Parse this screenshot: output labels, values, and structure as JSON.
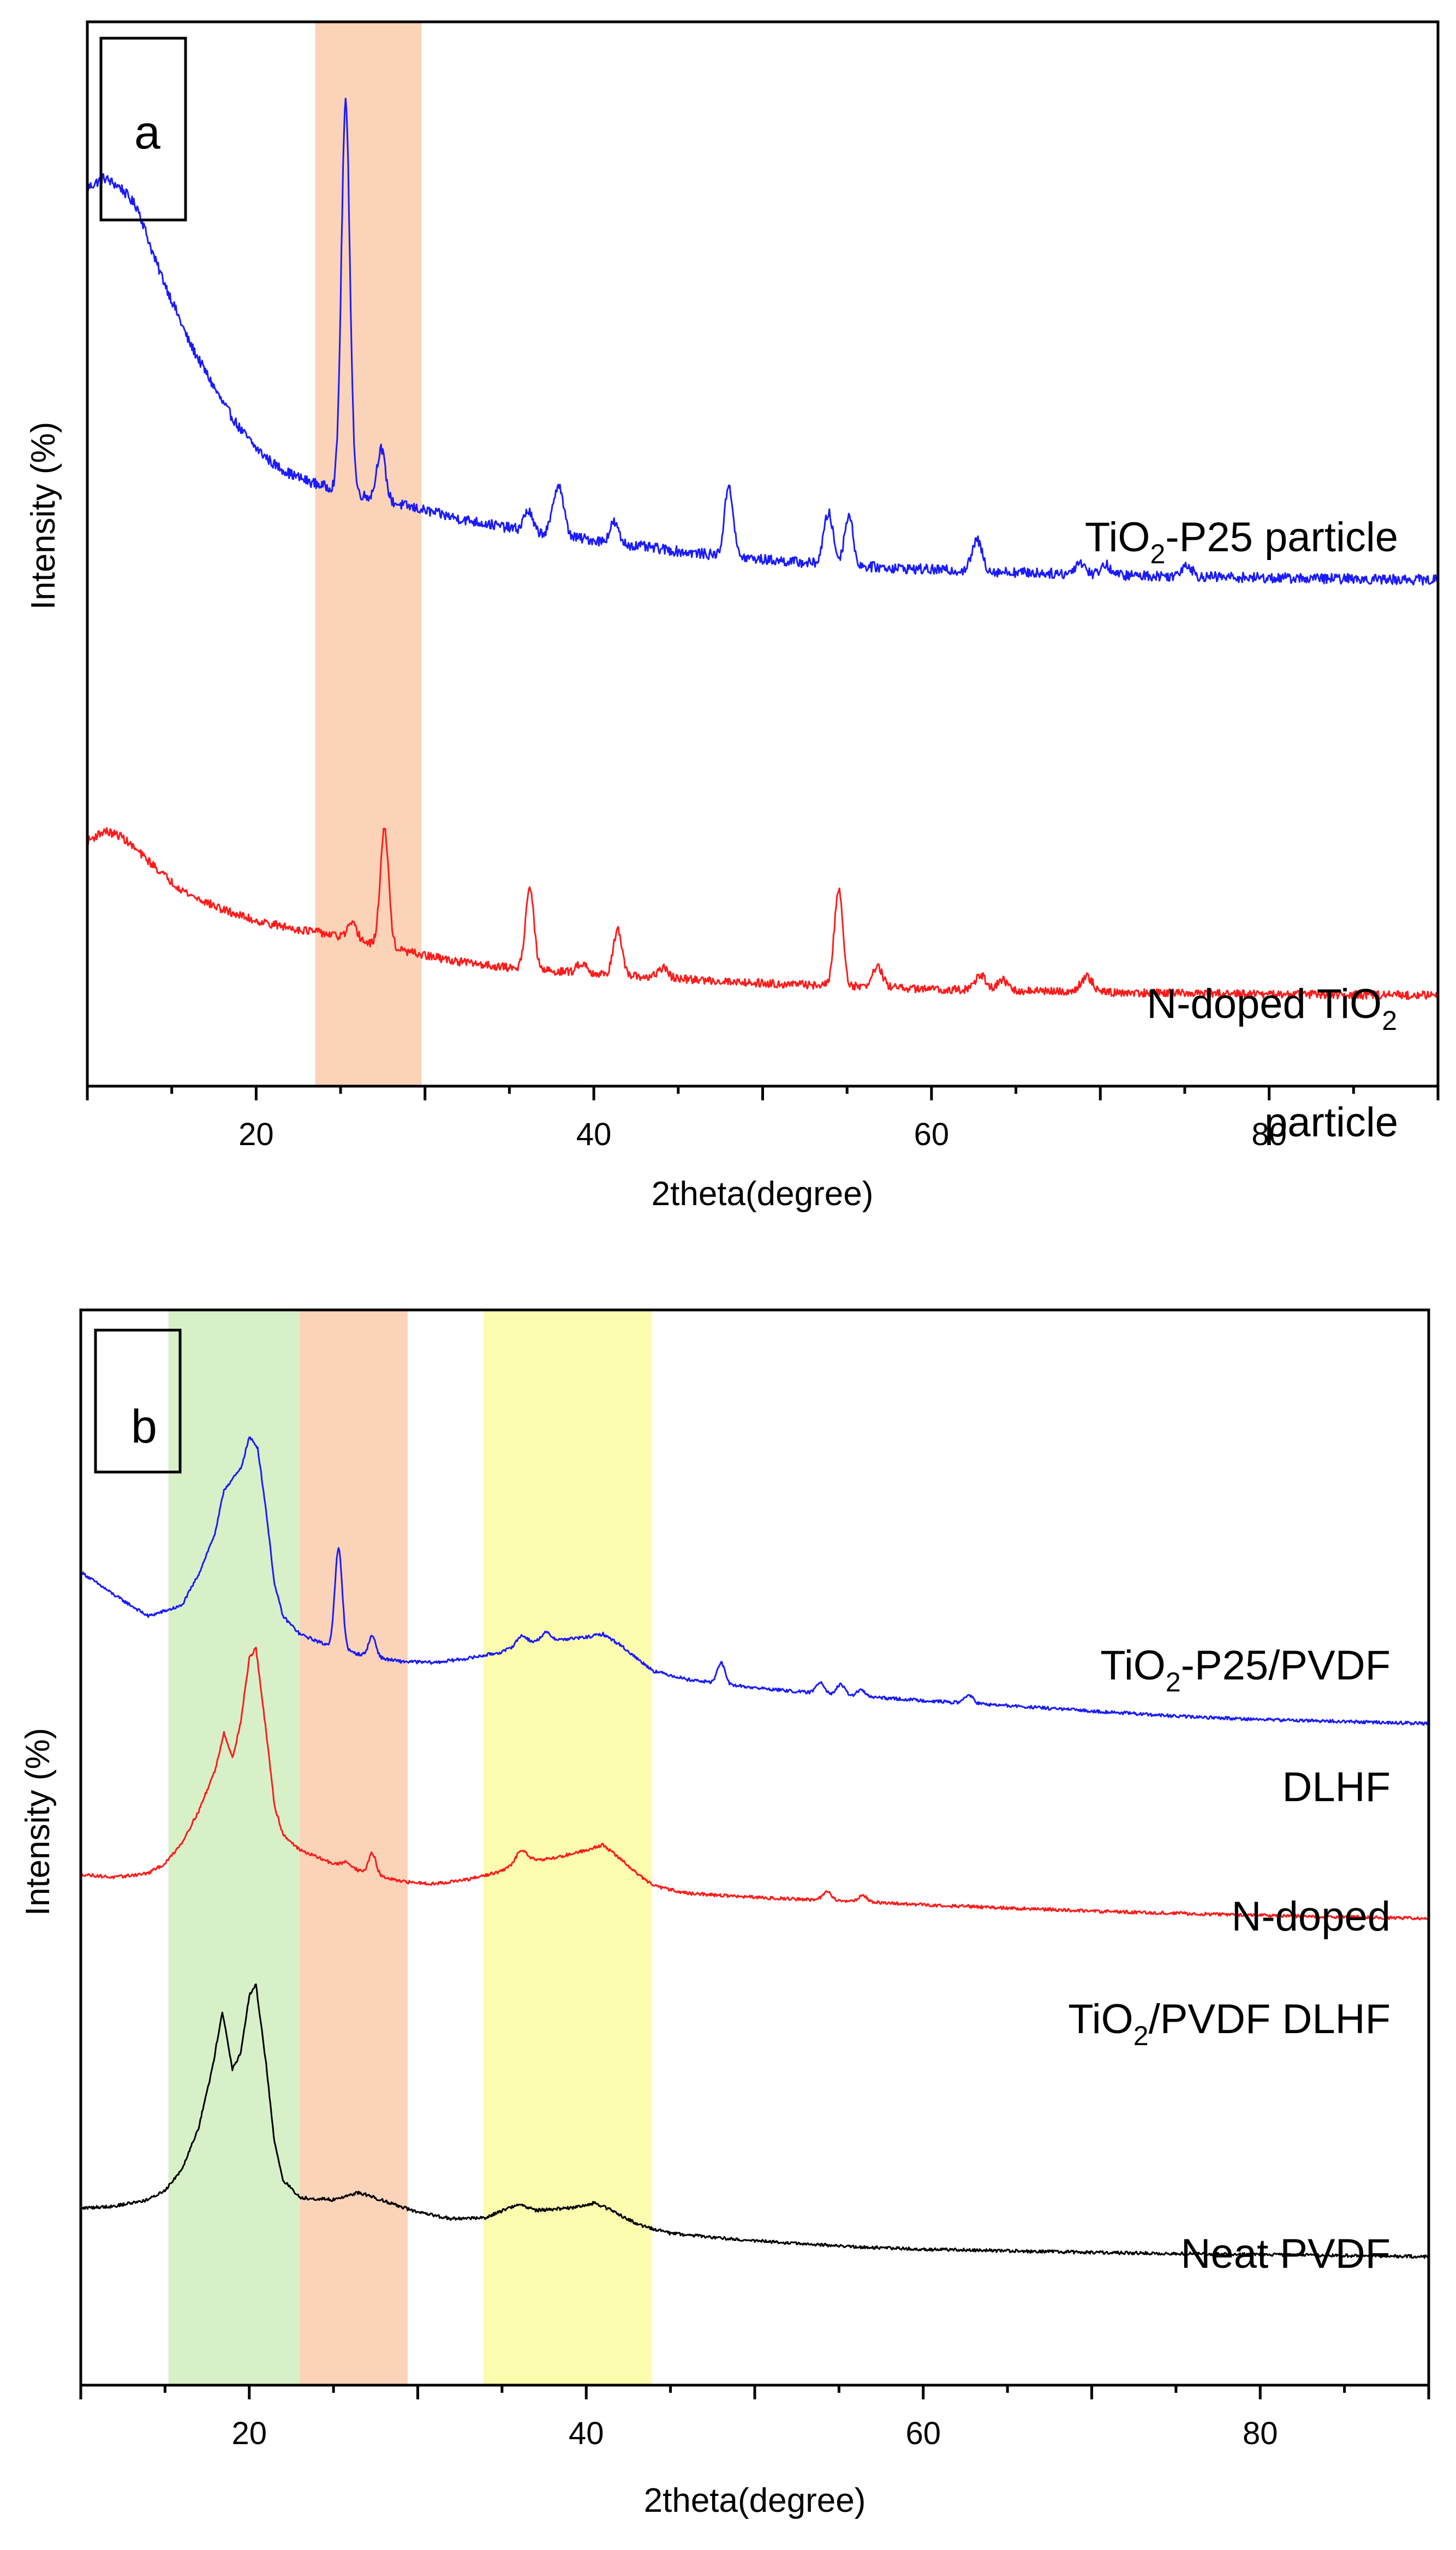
{
  "figure_title": "",
  "chart_data": [
    {
      "type": "line",
      "panel_label": "a",
      "title": "",
      "xlabel": "2theta(degree)",
      "ylabel": "Intensity (%)",
      "xlim": [
        10,
        90
      ],
      "ylim": [
        0,
        100
      ],
      "x_ticks": [
        20,
        40,
        60,
        80
      ],
      "x_tick_labels": [
        "20",
        "40",
        "60",
        "80"
      ],
      "grid": false,
      "legend": "none",
      "highlight_bands": [
        {
          "from": 23.5,
          "to": 29.8,
          "color": "#fbd3b8"
        }
      ],
      "series": [
        {
          "name": "TiO2-P25 particle",
          "color": "#1a1aff",
          "label_lines": [
            {
              "runs": [
                {
                  "text": "TiO"
                },
                {
                  "text": "2",
                  "sub": true
                },
                {
                  "text": "-P25 particle"
                }
              ]
            }
          ],
          "baseline_points": [
            [
              10,
              88
            ],
            [
              11,
              89
            ],
            [
              12,
              88
            ],
            [
              13,
              86
            ],
            [
              14,
              81
            ],
            [
              15,
              77
            ],
            [
              16,
              73
            ],
            [
              17,
              70
            ],
            [
              18,
              67
            ],
            [
              19,
              64.5
            ],
            [
              20,
              62.5
            ],
            [
              21,
              61
            ],
            [
              22,
              60
            ],
            [
              23,
              59.3
            ],
            [
              24,
              58.8
            ],
            [
              26,
              58
            ],
            [
              28,
              57.2
            ],
            [
              30,
              56.4
            ],
            [
              32,
              55.6
            ],
            [
              34,
              55
            ],
            [
              36,
              54.4
            ],
            [
              40,
              53.5
            ],
            [
              45,
              52.4
            ],
            [
              50,
              51.6
            ],
            [
              55,
              51
            ],
            [
              60,
              50.6
            ],
            [
              70,
              50.1
            ],
            [
              80,
              49.8
            ],
            [
              90,
              49.6
            ]
          ],
          "peaks": [
            [
              25.3,
              38,
              0.25
            ],
            [
              27.4,
              5,
              0.25
            ],
            [
              36.1,
              2,
              0.25
            ],
            [
              37.9,
              5,
              0.3
            ],
            [
              41.2,
              2,
              0.25
            ],
            [
              48.0,
              7,
              0.25
            ],
            [
              53.9,
              5,
              0.28
            ],
            [
              55.1,
              5,
              0.25
            ],
            [
              62.7,
              3,
              0.3
            ],
            [
              68.8,
              1.2,
              0.3
            ],
            [
              70.3,
              1,
              0.3
            ],
            [
              75.1,
              1.2,
              0.3
            ]
          ],
          "noise_amplitude": 0.5
        },
        {
          "name": "N-doped TiO2 particle",
          "color": "#ff1a1a",
          "label_lines": [
            {
              "runs": [
                {
                  "text": "N-doped TiO"
                },
                {
                  "text": "2",
                  "sub": true
                }
              ]
            },
            {
              "runs": [
                {
                  "text": "particle"
                }
              ]
            }
          ],
          "baseline_points": [
            [
              10,
              24
            ],
            [
              11,
              25
            ],
            [
              12,
              24.5
            ],
            [
              13,
              23
            ],
            [
              14,
              21.5
            ],
            [
              15,
              20
            ],
            [
              16,
              18.8
            ],
            [
              18,
              17.3
            ],
            [
              20,
              16.2
            ],
            [
              22,
              15.5
            ],
            [
              24,
              15
            ],
            [
              26,
              14.2
            ],
            [
              28,
              13.5
            ],
            [
              30,
              12.8
            ],
            [
              32,
              12.2
            ],
            [
              35,
              11.6
            ],
            [
              40,
              11
            ],
            [
              45,
              10.5
            ],
            [
              50,
              10.1
            ],
            [
              55,
              9.8
            ],
            [
              60,
              9.5
            ],
            [
              70,
              9.2
            ],
            [
              80,
              9
            ],
            [
              90,
              8.9
            ]
          ],
          "peaks": [
            [
              25.7,
              1.5,
              0.3
            ],
            [
              27.6,
              11.5,
              0.25
            ],
            [
              36.2,
              8,
              0.25
            ],
            [
              39.3,
              1,
              0.3
            ],
            [
              41.4,
              4.5,
              0.25
            ],
            [
              44.1,
              1,
              0.3
            ],
            [
              54.5,
              9.5,
              0.25
            ],
            [
              56.8,
              2,
              0.3
            ],
            [
              62.9,
              1.5,
              0.3
            ],
            [
              64.2,
              1,
              0.3
            ],
            [
              69.2,
              1.5,
              0.35
            ]
          ],
          "noise_amplitude": 0.4
        }
      ]
    },
    {
      "type": "line",
      "panel_label": "b",
      "title": "",
      "xlabel": "2theta(degree)",
      "ylabel": "Intensity (%)",
      "xlim": [
        10,
        90
      ],
      "ylim": [
        0,
        100
      ],
      "x_ticks": [
        20,
        40,
        60,
        80
      ],
      "x_tick_labels": [
        "20",
        "40",
        "60",
        "80"
      ],
      "grid": false,
      "legend": "none",
      "highlight_bands": [
        {
          "from": 15.2,
          "to": 23.0,
          "color": "#d7f0c8"
        },
        {
          "from": 23.0,
          "to": 29.4,
          "color": "#fbd3b8"
        },
        {
          "from": 33.9,
          "to": 43.9,
          "color": "#fcfcae"
        }
      ],
      "series": [
        {
          "name": "TiO2-P25/PVDF DLHF",
          "color": "#1a1aff",
          "label_lines": [
            {
              "runs": [
                {
                  "text": "TiO"
                },
                {
                  "text": "2",
                  "sub": true
                },
                {
                  "text": "-P25/PVDF"
                }
              ]
            },
            {
              "runs": [
                {
                  "text": "DLHF"
                }
              ]
            }
          ],
          "baseline_points": [
            [
              10,
              77.2
            ],
            [
              12,
              75
            ],
            [
              14,
              73
            ],
            [
              16,
              74
            ],
            [
              17,
              77
            ],
            [
              18,
              81
            ],
            [
              18.5,
              85
            ],
            [
              19,
              86
            ],
            [
              19.5,
              87
            ],
            [
              20,
              90
            ],
            [
              20.5,
              89
            ],
            [
              21,
              83
            ],
            [
              21.5,
              76
            ],
            [
              22,
              73
            ],
            [
              23,
              71.3
            ],
            [
              25,
              70
            ],
            [
              27,
              69.2
            ],
            [
              29,
              68.7
            ],
            [
              31,
              68.6
            ],
            [
              33,
              69
            ],
            [
              35,
              69.6
            ],
            [
              36,
              70.3
            ],
            [
              38,
              70.7
            ],
            [
              40,
              71
            ],
            [
              41,
              71.3
            ],
            [
              42,
              70.3
            ],
            [
              43,
              69
            ],
            [
              44,
              67.8
            ],
            [
              46,
              67
            ],
            [
              50,
              66.2
            ],
            [
              55,
              65.5
            ],
            [
              60,
              65
            ],
            [
              65,
              64.5
            ],
            [
              70,
              64
            ],
            [
              75,
              63.5
            ],
            [
              80,
              63.2
            ],
            [
              90,
              62.8
            ]
          ],
          "peaks": [
            [
              25.3,
              9.5,
              0.22
            ],
            [
              27.3,
              2,
              0.22
            ],
            [
              36.2,
              0.8,
              0.3
            ],
            [
              37.6,
              0.8,
              0.3
            ],
            [
              48.0,
              2,
              0.22
            ],
            [
              53.9,
              1.1,
              0.25
            ],
            [
              55.1,
              1,
              0.25
            ],
            [
              56.3,
              0.6,
              0.25
            ],
            [
              62.7,
              0.8,
              0.25
            ]
          ],
          "noise_amplitude": 0.15
        },
        {
          "name": "N-doped TiO2/PVDF DLHF",
          "color": "#ff1a1a",
          "label_lines": [
            {
              "runs": [
                {
                  "text": "N-doped"
                }
              ]
            },
            {
              "runs": [
                {
                  "text": "TiO"
                },
                {
                  "text": "2",
                  "sub": true
                },
                {
                  "text": "/PVDF DLHF"
                }
              ]
            }
          ],
          "baseline_points": [
            [
              10,
              48.5
            ],
            [
              12,
              48.2
            ],
            [
              14,
              48.6
            ],
            [
              15,
              49.5
            ],
            [
              16,
              51.5
            ],
            [
              17,
              54.5
            ],
            [
              18,
              58.5
            ],
            [
              18.5,
              62
            ],
            [
              19,
              59.5
            ],
            [
              19.5,
              63
            ],
            [
              20,
              69
            ],
            [
              20.4,
              70
            ],
            [
              21,
              62
            ],
            [
              21.5,
              55
            ],
            [
              22,
              52.3
            ],
            [
              23,
              50.8
            ],
            [
              25,
              49.5
            ],
            [
              27,
              48.6
            ],
            [
              29,
              47.8
            ],
            [
              31,
              47.6
            ],
            [
              33,
              48
            ],
            [
              35,
              48.8
            ],
            [
              36,
              49.8
            ],
            [
              38,
              50
            ],
            [
              40,
              50.8
            ],
            [
              41,
              51.3
            ],
            [
              42,
              50
            ],
            [
              43,
              48.6
            ],
            [
              44,
              47.4
            ],
            [
              46,
              46.7
            ],
            [
              50,
              46.3
            ],
            [
              55,
              46
            ],
            [
              60,
              45.6
            ],
            [
              65,
              45.3
            ],
            [
              70,
              45
            ],
            [
              80,
              44.6
            ],
            [
              90,
              44.3
            ]
          ],
          "peaks": [
            [
              25.8,
              0.5,
              0.3
            ],
            [
              27.3,
              2,
              0.22
            ],
            [
              36.2,
              1,
              0.3
            ],
            [
              54.3,
              0.8,
              0.25
            ],
            [
              56.4,
              0.6,
              0.25
            ]
          ],
          "noise_amplitude": 0.15
        },
        {
          "name": "Neat PVDF",
          "color": "#000000",
          "label_lines": [
            {
              "runs": [
                {
                  "text": "Neat PVDF"
                }
              ]
            }
          ],
          "baseline_points": [
            [
              10,
              16.8
            ],
            [
              12,
              17
            ],
            [
              14,
              17.6
            ],
            [
              15,
              18.5
            ],
            [
              16,
              20.5
            ],
            [
              17,
              24.5
            ],
            [
              17.8,
              30
            ],
            [
              18.4,
              35.5
            ],
            [
              19,
              30
            ],
            [
              19.5,
              31.5
            ],
            [
              20,
              37
            ],
            [
              20.4,
              38
            ],
            [
              21,
              30.5
            ],
            [
              21.5,
              23
            ],
            [
              22,
              19.5
            ],
            [
              23,
              17.8
            ],
            [
              25,
              17.6
            ],
            [
              26.5,
              18.3
            ],
            [
              28,
              17.5
            ],
            [
              30,
              16.4
            ],
            [
              32,
              15.8
            ],
            [
              34,
              15.9
            ],
            [
              36,
              17.2
            ],
            [
              37,
              16.6
            ],
            [
              39,
              16.8
            ],
            [
              40.5,
              17.3
            ],
            [
              41.5,
              16.6
            ],
            [
              43,
              15.3
            ],
            [
              45,
              14.4
            ],
            [
              50,
              13.7
            ],
            [
              55,
              13.2
            ],
            [
              60,
              12.9
            ],
            [
              70,
              12.6
            ],
            [
              80,
              12.4
            ],
            [
              90,
              12.2
            ]
          ],
          "peaks": [],
          "noise_amplitude": 0.15
        }
      ]
    }
  ]
}
